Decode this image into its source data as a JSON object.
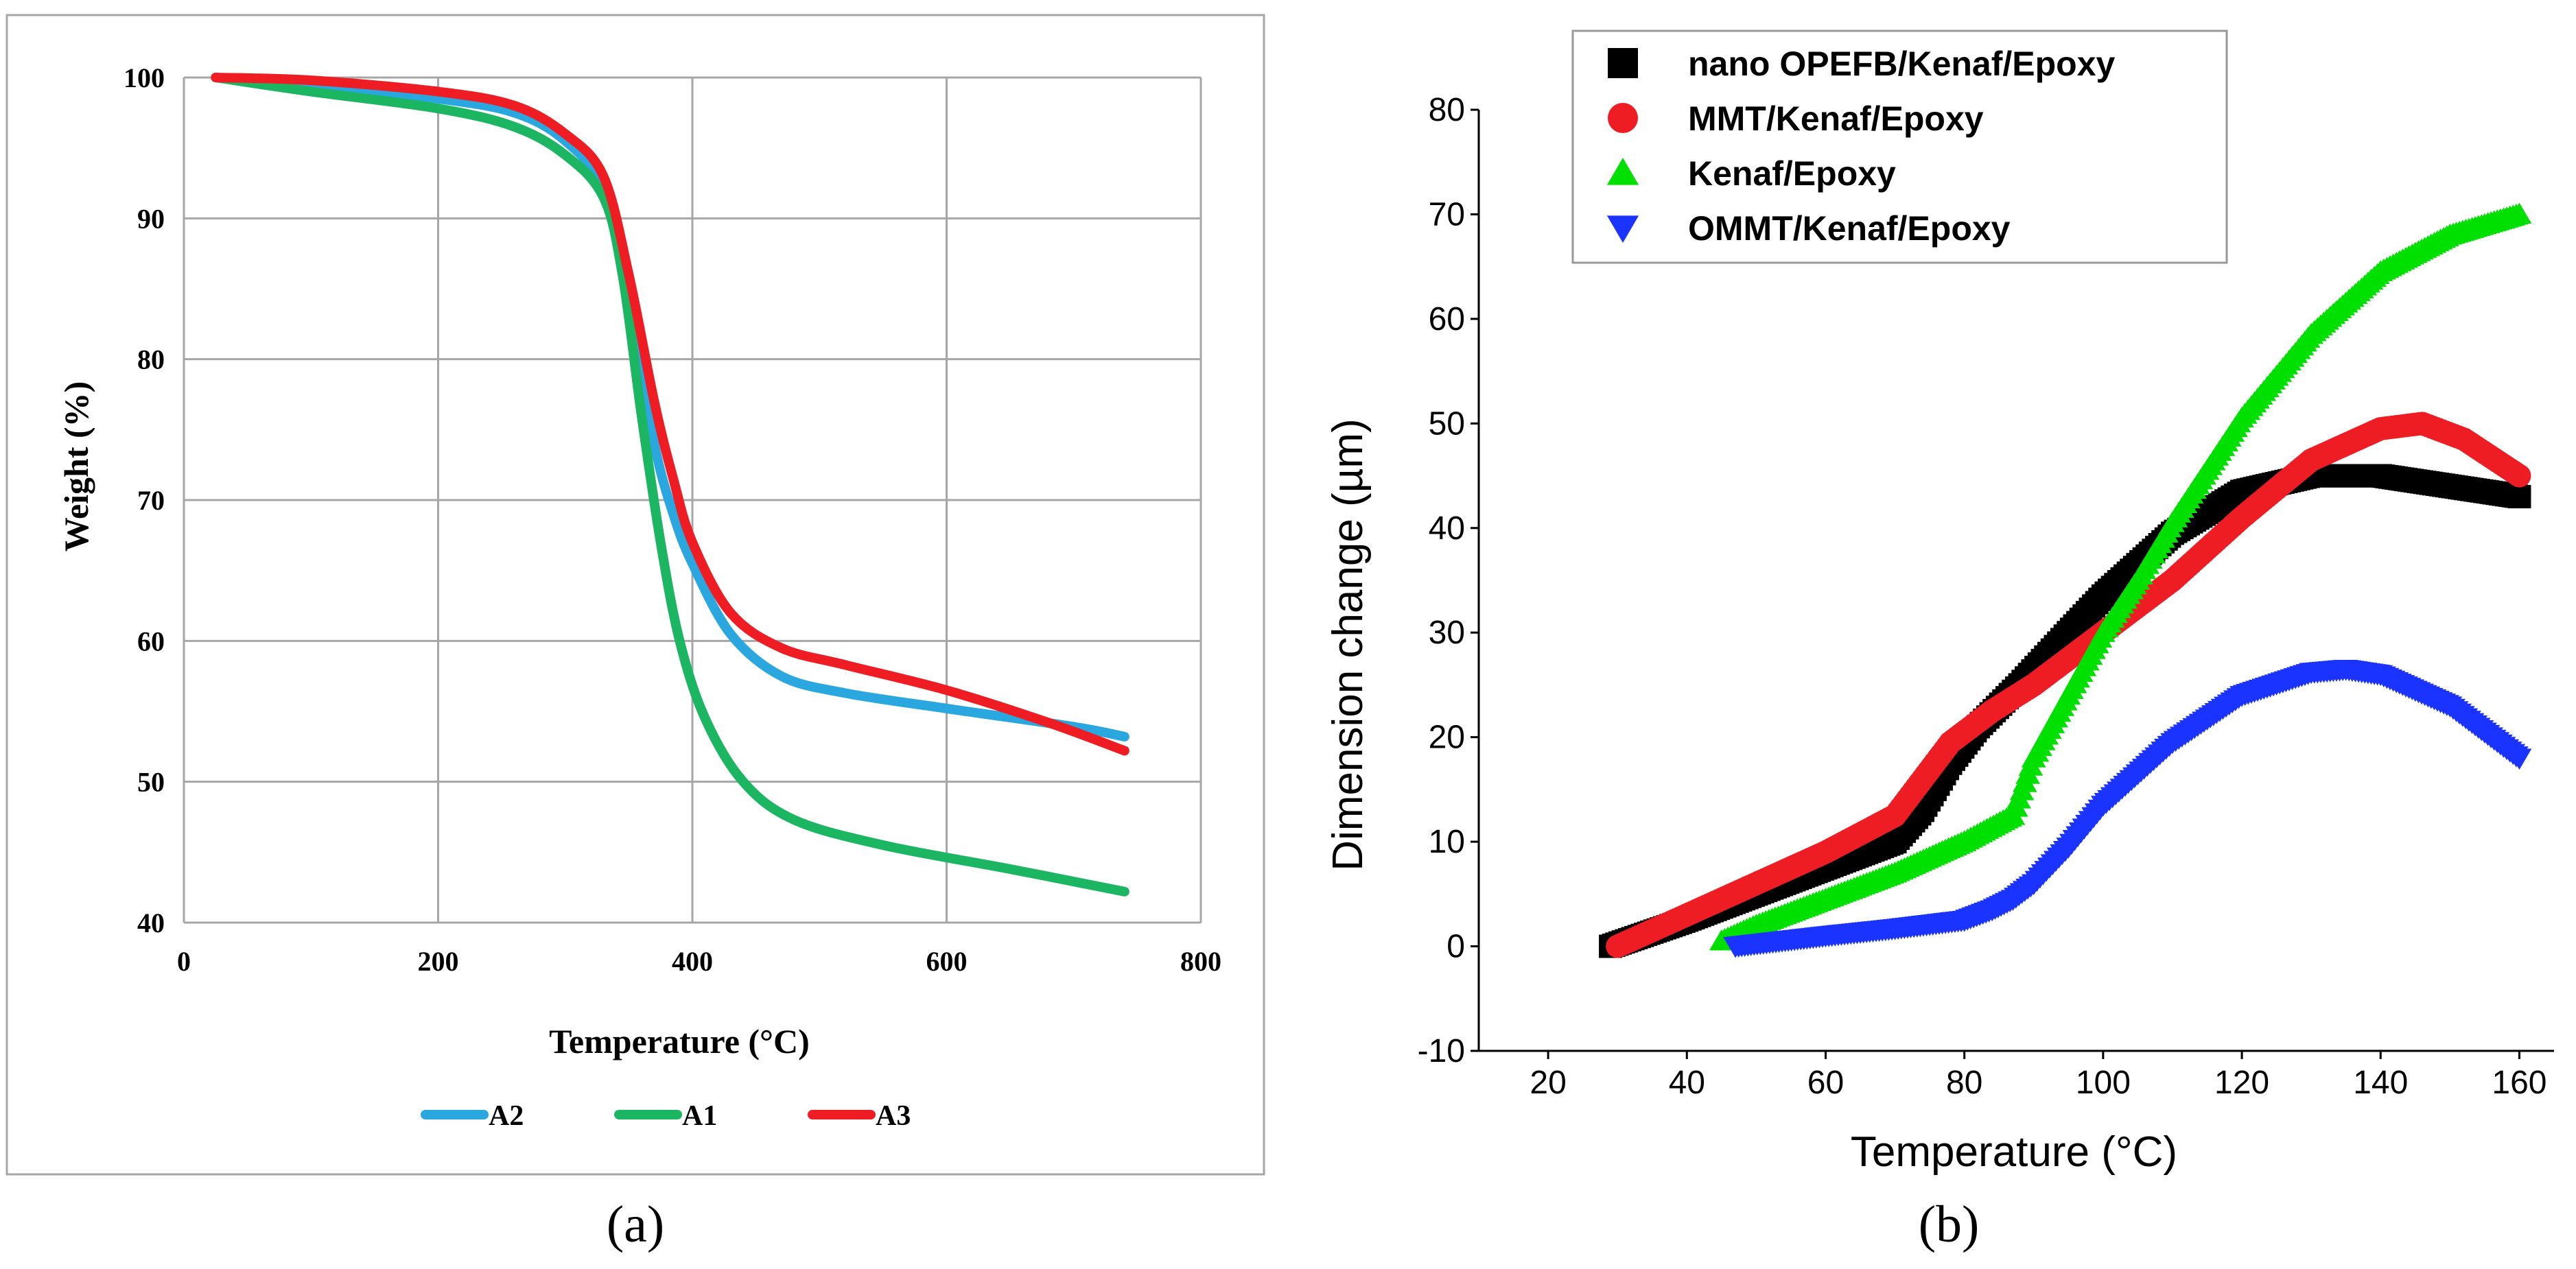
{
  "captions": {
    "a": "(a)",
    "b": "(b)"
  },
  "chart_data": [
    {
      "type": "line",
      "panel": "a",
      "title": "",
      "xlabel": "Temperature (°C)",
      "ylabel": "Weight (%)",
      "xlim": [
        0,
        800
      ],
      "ylim": [
        40,
        100
      ],
      "xticks": [
        "0",
        "200",
        "400",
        "600",
        "800"
      ],
      "yticks": [
        "40",
        "50",
        "60",
        "70",
        "80",
        "90",
        "100"
      ],
      "grid": true,
      "legend_position": "bottom",
      "series": [
        {
          "name": "A2",
          "color": "#2aa7de",
          "x": [
            25,
            100,
            200,
            260,
            300,
            330,
            350,
            370,
            385,
            400,
            430,
            470,
            520,
            600,
            700,
            740
          ],
          "y": [
            100,
            99.5,
            98.5,
            97.5,
            95.5,
            92,
            84,
            74,
            69,
            65.5,
            60.5,
            57.5,
            56.3,
            55.2,
            53.9,
            53.2
          ]
        },
        {
          "name": "A1",
          "color": "#1cb561",
          "x": [
            25,
            100,
            200,
            260,
            300,
            330,
            345,
            360,
            375,
            390,
            410,
            440,
            480,
            550,
            650,
            740
          ],
          "y": [
            100,
            99,
            97.8,
            96.5,
            94.5,
            91.5,
            86,
            76,
            67,
            60,
            54.5,
            50,
            47.3,
            45.5,
            43.8,
            42.2
          ]
        },
        {
          "name": "A3",
          "color": "#ee1d24",
          "x": [
            25,
            100,
            200,
            260,
            300,
            330,
            350,
            370,
            385,
            400,
            430,
            470,
            520,
            600,
            680,
            740
          ],
          "y": [
            100,
            99.8,
            99,
            98,
            96,
            93,
            86,
            77,
            71.5,
            67,
            62,
            59.5,
            58.3,
            56.5,
            54.2,
            52.2
          ]
        }
      ]
    },
    {
      "type": "scatter",
      "panel": "b",
      "title": "",
      "xlabel": "Temperature (°C)",
      "ylabel": "Dimension change (µm)",
      "xlim": [
        10,
        165
      ],
      "ylim": [
        -10,
        80
      ],
      "xticks": [
        "20",
        "40",
        "60",
        "80",
        "100",
        "120",
        "140",
        "160"
      ],
      "yticks": [
        "-10",
        "0",
        "10",
        "20",
        "30",
        "40",
        "50",
        "60",
        "70",
        "80"
      ],
      "grid": false,
      "legend_position": "top-left",
      "series": [
        {
          "name": "nano OPEFB/Kenaf/Epoxy",
          "marker": "square",
          "color": "#000000",
          "x": [
            29,
            40,
            50,
            60,
            70,
            74,
            78,
            82,
            88,
            95,
            100,
            110,
            120,
            130,
            140,
            150,
            160
          ],
          "y": [
            0,
            2.5,
            5,
            7.5,
            10,
            13,
            17.5,
            21,
            25,
            30,
            33.5,
            39.5,
            43.5,
            45,
            45,
            44,
            43
          ]
        },
        {
          "name": "MMT/Kenaf/Epoxy",
          "marker": "circle",
          "color": "#ee1d24",
          "x": [
            30,
            40,
            50,
            60,
            70,
            74,
            78,
            84,
            90,
            100,
            110,
            120,
            130,
            140,
            146,
            152,
            160
          ],
          "y": [
            0,
            3,
            6,
            9,
            12.5,
            16,
            19.5,
            22.5,
            25,
            30,
            35,
            41,
            46.5,
            49.5,
            50,
            48.5,
            45
          ]
        },
        {
          "name": "Kenaf/Epoxy",
          "marker": "triangle-up",
          "color": "#00e000",
          "x": [
            45,
            50,
            60,
            70,
            80,
            87,
            90,
            95,
            100,
            105,
            110,
            120,
            130,
            140,
            150,
            160
          ],
          "y": [
            0.5,
            2,
            4.5,
            7,
            10,
            12.5,
            18,
            24,
            30,
            35,
            40.5,
            50.5,
            58.5,
            64.5,
            68,
            70
          ]
        },
        {
          "name": "OMMT/Kenaf/Epoxy",
          "marker": "triangle-down",
          "color": "#1a33ff",
          "x": [
            47,
            60,
            70,
            80,
            84,
            87,
            90,
            95,
            100,
            110,
            120,
            130,
            135,
            140,
            150,
            160
          ],
          "y": [
            0,
            1,
            1.7,
            2.5,
            3.5,
            4.5,
            6,
            9.5,
            13.5,
            19.5,
            24,
            26.2,
            26.5,
            26,
            23,
            18
          ]
        }
      ]
    }
  ]
}
